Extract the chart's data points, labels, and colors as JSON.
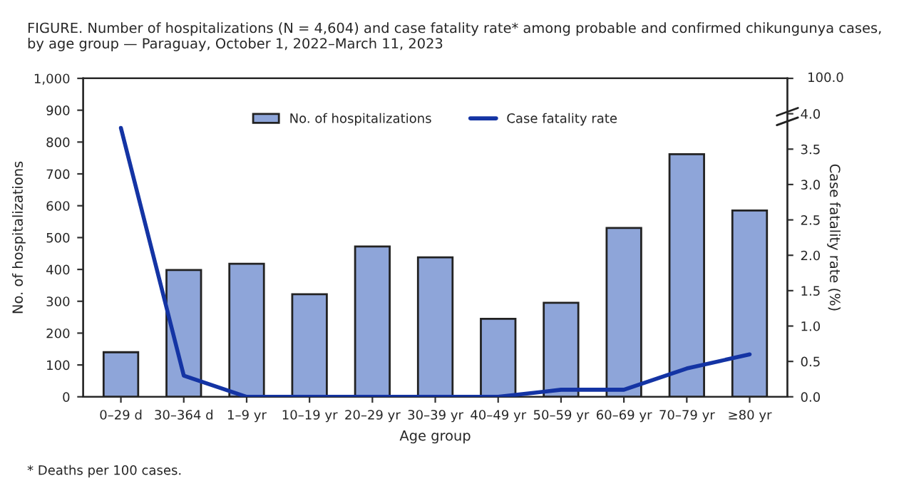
{
  "chart_data": {
    "type": "bar",
    "title": "FIGURE. Number of hospitalizations (N = 4,604) and case fatality rate* among probable and confirmed chikungunya cases, by age group — Paraguay, October 1, 2022–March 11, 2023",
    "xlabel": "Age group",
    "ylabel": "No. of hospitalizations",
    "y2label": "Case fatality rate (%)",
    "categories": [
      "0–29 d",
      "30–364 d",
      "1–9 yr",
      "10–19 yr",
      "20–29 yr",
      "30–39 yr",
      "40–49 yr",
      "50–59 yr",
      "60–69 yr",
      "70–79 yr",
      "≥80 yr"
    ],
    "series": [
      {
        "name": "No. of hospitalizations",
        "color": "#8ea5d9",
        "values": [
          140,
          398,
          418,
          322,
          472,
          438,
          245,
          295,
          530,
          762,
          585
        ]
      },
      {
        "name": "Case fatality rate",
        "type": "line",
        "axis": "y2",
        "color": "#1434a4",
        "values": [
          3.8,
          0.3,
          0,
          0,
          0,
          0,
          0,
          0.1,
          0.1,
          0.4,
          0.6
        ]
      }
    ],
    "ylim": [
      0,
      1000
    ],
    "yticks": [
      0,
      100,
      200,
      300,
      400,
      500,
      600,
      700,
      800,
      900,
      {
        "value": 1000,
        "label": "1,000"
      }
    ],
    "y2lim": [
      0,
      4.5
    ],
    "y2ticks": [
      {
        "value": 0,
        "label": "0.0"
      },
      0.5,
      {
        "value": 1,
        "label": "1.0"
      },
      1.5,
      {
        "value": 2,
        "label": "2.0"
      },
      2.5,
      {
        "value": 3,
        "label": "3.0"
      },
      3.5,
      {
        "value": 4,
        "label": "4.0"
      },
      {
        "value": 4.5,
        "label": null
      }
    ],
    "grid": false,
    "legend": "top",
    "marker": "none",
    "line_style": "solid",
    "annotations": [
      "100.0",
      "* Deaths per 100 cases."
    ]
  }
}
